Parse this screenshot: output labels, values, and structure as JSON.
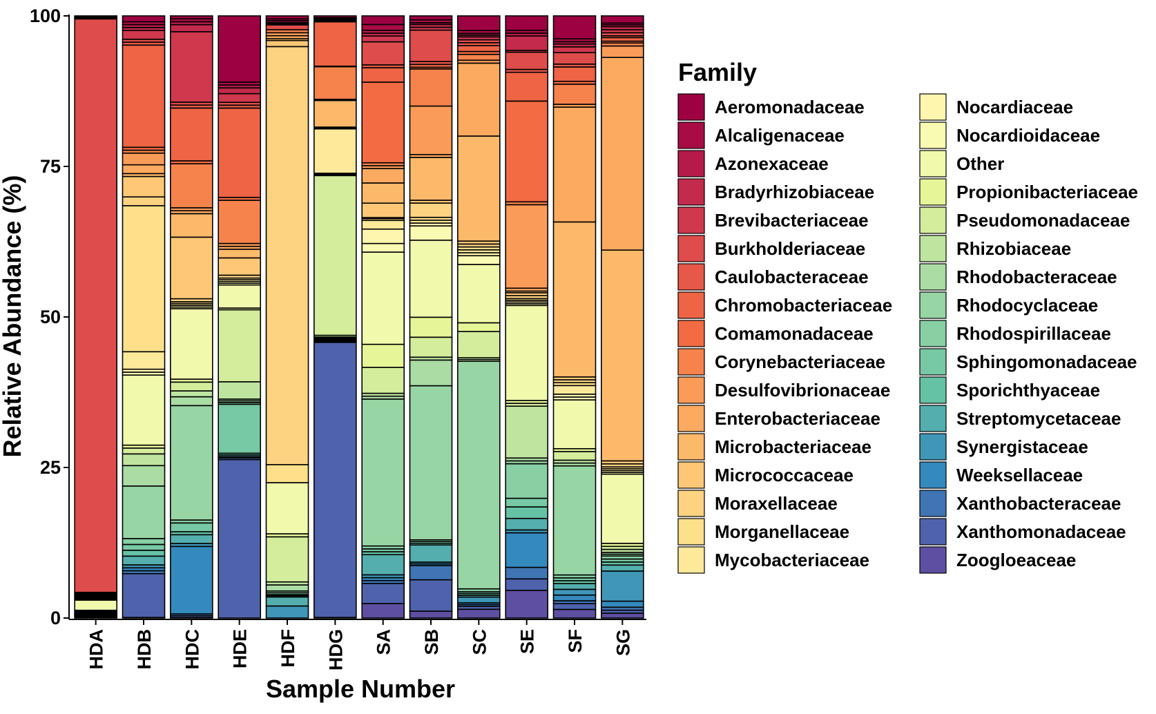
{
  "chart_data": {
    "type": "bar",
    "stacked": true,
    "title": "",
    "xlabel": "Sample Number",
    "ylabel": "Relative Abundance (%)",
    "ylim": [
      0,
      100
    ],
    "yticks": [
      "0",
      "25",
      "50",
      "75",
      "100"
    ],
    "grid": false,
    "legend_title": "Family",
    "legend_position": "right",
    "categories": [
      "HDA",
      "HDB",
      "HDC",
      "HDE",
      "HDF",
      "HDG",
      "SA",
      "SB",
      "SC",
      "SE",
      "SF",
      "SG"
    ],
    "series": [
      {
        "name": "Aeromonadaceae",
        "color": "#9E0142",
        "values": [
          0.1,
          1.0,
          0.5,
          11.5,
          0.5,
          0.3,
          1.5,
          0.7,
          2.5,
          2.5,
          4.0,
          1.2
        ]
      },
      {
        "name": "Alcaligenaceae",
        "color": "#A90C45",
        "values": [
          0.1,
          0.5,
          0.5,
          0.5,
          0.3,
          0.1,
          1.0,
          0.5,
          0.5,
          0.5,
          0.5,
          0.3
        ]
      },
      {
        "name": "Azonexaceae",
        "color": "#B51A4A",
        "values": [
          0.1,
          0.5,
          0.5,
          0.5,
          0.3,
          0.1,
          0.5,
          0.3,
          0.3,
          0.5,
          0.4,
          0.3
        ]
      },
      {
        "name": "Bradyrhizobiaceae",
        "color": "#C32A4B",
        "values": [
          0.1,
          0.5,
          1.2,
          1.0,
          0.2,
          0.1,
          0.5,
          0.5,
          0.3,
          2.5,
          0.5,
          0.5
        ]
      },
      {
        "name": "Brevibacteriaceae",
        "color": "#D0384E",
        "values": [
          0.1,
          1.5,
          12.0,
          1.5,
          0.2,
          0.1,
          1.0,
          0.5,
          0.5,
          0.3,
          1.0,
          0.5
        ]
      },
      {
        "name": "Burkholderiaceae",
        "color": "#DE4C4B",
        "values": [
          96.0,
          0.5,
          0.5,
          0.5,
          0.8,
          0.2,
          4.0,
          5.5,
          0.5,
          3.0,
          2.0,
          0.5
        ]
      },
      {
        "name": "Caulobacteraceae",
        "color": "#E65848",
        "values": [
          0.1,
          0.5,
          0.5,
          0.5,
          0.0,
          0.1,
          0.5,
          0.5,
          0.5,
          0.5,
          0.5,
          0.3
        ]
      },
      {
        "name": "Chromobacteriaceae",
        "color": "#EE6445",
        "values": [
          0.1,
          17.5,
          9.0,
          15.5,
          0.0,
          7.5,
          2.5,
          0.5,
          1.0,
          5.0,
          2.5,
          0.6
        ]
      },
      {
        "name": "Comamonadaceae",
        "color": "#F36B42",
        "values": [
          0.1,
          0.5,
          0.5,
          0.5,
          0.0,
          0.1,
          14.0,
          0.3,
          0.5,
          17.5,
          0.5,
          0.3
        ]
      },
      {
        "name": "Corynebacteriaceae",
        "color": "#F6834B",
        "values": [
          0.1,
          0.5,
          7.5,
          7.5,
          0.5,
          5.5,
          0.5,
          6.5,
          1.0,
          0.5,
          3.5,
          0.5
        ]
      },
      {
        "name": "Desulfovibrionaceae",
        "color": "#FA9B58",
        "values": [
          0.1,
          2.0,
          0.5,
          0.5,
          0.5,
          0.1,
          0.5,
          8.5,
          0.5,
          14.5,
          0.5,
          1.9
        ]
      },
      {
        "name": "Enterobacteriaceae",
        "color": "#FCAA5F",
        "values": [
          0.1,
          1.5,
          0.5,
          0.5,
          0.5,
          0.1,
          2.5,
          0.5,
          12.5,
          0.5,
          20.0,
          32.0
        ]
      },
      {
        "name": "Microbacteriaceae",
        "color": "#FDB96A",
        "values": [
          0.1,
          0.5,
          4.0,
          1.5,
          0.3,
          4.5,
          3.5,
          7.5,
          18.0,
          0.3,
          27.0,
          35.0
        ]
      },
      {
        "name": "Micrococcaceae",
        "color": "#FDC776",
        "values": [
          0.1,
          3.5,
          10.5,
          3.0,
          1.0,
          0.1,
          2.5,
          0.5,
          0.5,
          0.5,
          0.5,
          0.5
        ]
      },
      {
        "name": "Moraxellaceae",
        "color": "#FDD382",
        "values": [
          0.1,
          1.5,
          0.5,
          0.5,
          69.5,
          0.1,
          0.2,
          2.5,
          0.5,
          0.5,
          0.5,
          0.5
        ]
      },
      {
        "name": "Morganellaceae",
        "color": "#FEE08B",
        "values": [
          0.1,
          25.0,
          0.3,
          0.3,
          3.0,
          0.1,
          0.3,
          0.5,
          0.5,
          0.3,
          0.5,
          0.3
        ]
      },
      {
        "name": "Mycobacteriaceae",
        "color": "#FEE99A",
        "values": [
          0.1,
          3.0,
          0.3,
          0.3,
          0.0,
          7.5,
          1.5,
          0.5,
          0.5,
          0.3,
          1.5,
          0.3
        ]
      },
      {
        "name": "Nocardiaceae",
        "color": "#FEF5AF",
        "values": [
          0.1,
          0.5,
          0.3,
          0.3,
          0.0,
          0.1,
          2.5,
          0.5,
          0.5,
          0.3,
          0.5,
          0.3
        ]
      },
      {
        "name": "Nocardioidaceae",
        "color": "#F9FBB2",
        "values": [
          0.1,
          0.5,
          0.3,
          0.3,
          0.0,
          0.1,
          1.5,
          2.5,
          1.5,
          0.3,
          0.5,
          0.3
        ]
      },
      {
        "name": "Other",
        "color": "#F1F9AC",
        "values": [
          1.7,
          12.0,
          12.0,
          4.0,
          8.5,
          0.1,
          16.0,
          13.5,
          10.0,
          16.5,
          8.5,
          11.5
        ]
      },
      {
        "name": "Propionibacteriaceae",
        "color": "#E6F598",
        "values": [
          0.1,
          0.5,
          0.5,
          0.3,
          0.5,
          0.1,
          4.0,
          3.5,
          1.5,
          0.5,
          0.5,
          0.5
        ]
      },
      {
        "name": "Pseudomonadaceae",
        "color": "#D3ED9C",
        "values": [
          0.1,
          1.0,
          1.5,
          12.5,
          7.5,
          27.0,
          4.5,
          3.5,
          4.5,
          0.5,
          1.5,
          0.5
        ]
      },
      {
        "name": "Rhizobiaceae",
        "color": "#BEE5A0",
        "values": [
          0.1,
          2.0,
          1.0,
          3.0,
          0.5,
          0.3,
          0.5,
          0.5,
          0.3,
          9.0,
          0.5,
          0.5
        ]
      },
      {
        "name": "Rhodobacteraceae",
        "color": "#AADCA4",
        "values": [
          0.1,
          3.5,
          1.5,
          0.3,
          1.0,
          0.1,
          0.5,
          4.5,
          0.3,
          0.5,
          0.5,
          0.3
        ]
      },
      {
        "name": "Rhodocyclaceae",
        "color": "#98D5A4",
        "values": [
          0.1,
          9.0,
          19.5,
          0.3,
          0.3,
          0.1,
          25.5,
          27.0,
          39.0,
          0.5,
          19.0,
          0.3
        ]
      },
      {
        "name": "Rhodospirillaceae",
        "color": "#88CFA4",
        "values": [
          0.1,
          1.0,
          0.5,
          0.3,
          0.3,
          0.1,
          0.5,
          0.3,
          0.5,
          6.0,
          0.5,
          0.5
        ]
      },
      {
        "name": "Sphingomonadaceae",
        "color": "#77C8A4",
        "values": [
          0.1,
          1.0,
          1.5,
          8.5,
          0.2,
          0.1,
          0.5,
          0.3,
          0.3,
          1.5,
          0.5,
          0.5
        ]
      },
      {
        "name": "Sporichthyaceae",
        "color": "#66C2A5",
        "values": [
          0.1,
          1.0,
          0.5,
          0.3,
          0.2,
          0.1,
          0.5,
          0.3,
          0.3,
          2.0,
          0.5,
          0.5
        ]
      },
      {
        "name": "Streptomycetaceae",
        "color": "#54AEAD",
        "values": [
          0.1,
          1.5,
          1.5,
          0.3,
          1.5,
          0.1,
          3.5,
          3.0,
          0.3,
          2.0,
          1.0,
          1.0
        ]
      },
      {
        "name": "Synergistaceae",
        "color": "#3F96B7",
        "values": [
          0.1,
          0.5,
          0.5,
          0.1,
          2.0,
          0.1,
          0.5,
          0.3,
          1.0,
          0.5,
          1.0,
          5.0
        ]
      },
      {
        "name": "Weeksellaceae",
        "color": "#3489BD",
        "values": [
          0.1,
          0.5,
          11.5,
          0.1,
          0.0,
          0.1,
          0.5,
          0.3,
          0.3,
          6.0,
          1.0,
          1.0
        ]
      },
      {
        "name": "Xanthobacteraceae",
        "color": "#4075B4",
        "values": [
          0.1,
          0.5,
          0.3,
          0.3,
          0.0,
          0.1,
          0.5,
          2.5,
          0.3,
          2.0,
          0.5,
          0.5
        ]
      },
      {
        "name": "Xanthomonadaceae",
        "color": "#4F63AC",
        "values": [
          0.1,
          7.5,
          0.3,
          27.5,
          0.0,
          46.5,
          3.5,
          5.5,
          0.5,
          2.0,
          1.0,
          0.5
        ]
      },
      {
        "name": "Zoogloeaceae",
        "color": "#5E4FA2",
        "values": [
          0.0,
          0.1,
          0.1,
          0.0,
          0.0,
          0.1,
          2.5,
          1.2,
          1.5,
          4.8,
          1.5,
          0.8
        ]
      }
    ]
  }
}
